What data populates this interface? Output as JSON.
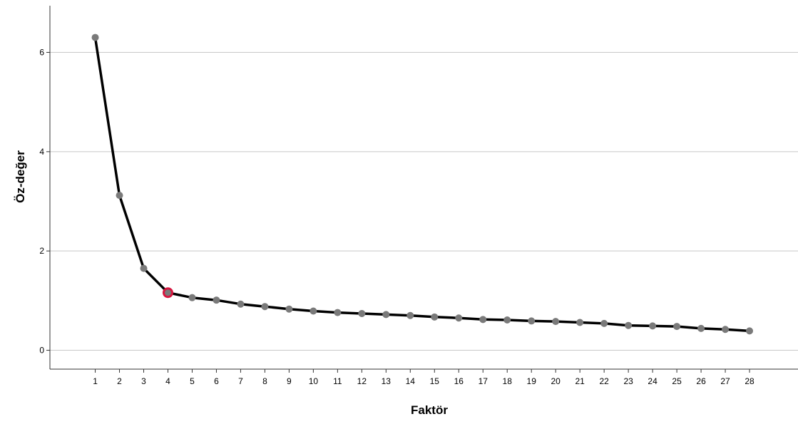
{
  "chart_data": {
    "type": "line",
    "title": "",
    "xlabel": "Faktör",
    "ylabel": "Öz-değer",
    "x": [
      1,
      2,
      3,
      4,
      5,
      6,
      7,
      8,
      9,
      10,
      11,
      12,
      13,
      14,
      15,
      16,
      17,
      18,
      19,
      20,
      21,
      22,
      23,
      24,
      25,
      26,
      27,
      28
    ],
    "values": [
      6.3,
      3.12,
      1.65,
      1.16,
      1.06,
      1.01,
      0.93,
      0.88,
      0.83,
      0.79,
      0.76,
      0.74,
      0.72,
      0.7,
      0.67,
      0.65,
      0.62,
      0.61,
      0.59,
      0.58,
      0.56,
      0.54,
      0.5,
      0.49,
      0.48,
      0.44,
      0.42,
      0.39
    ],
    "yticks": [
      0,
      2,
      4,
      6
    ],
    "xticks": [
      1,
      2,
      3,
      4,
      5,
      6,
      7,
      8,
      9,
      10,
      11,
      12,
      13,
      14,
      15,
      16,
      17,
      18,
      19,
      20,
      21,
      22,
      23,
      24,
      25,
      26,
      27,
      28
    ],
    "ylim": [
      -0.38,
      6.94
    ],
    "xlim": [
      -0.87,
      30
    ],
    "grid": "horizontal",
    "highlighted_point_x": 4,
    "colors": {
      "line": "#000000",
      "marker": "#7a7a7a",
      "highlight": "#d6163f",
      "grid": "#c8c8c8",
      "axis": "#333333"
    }
  }
}
